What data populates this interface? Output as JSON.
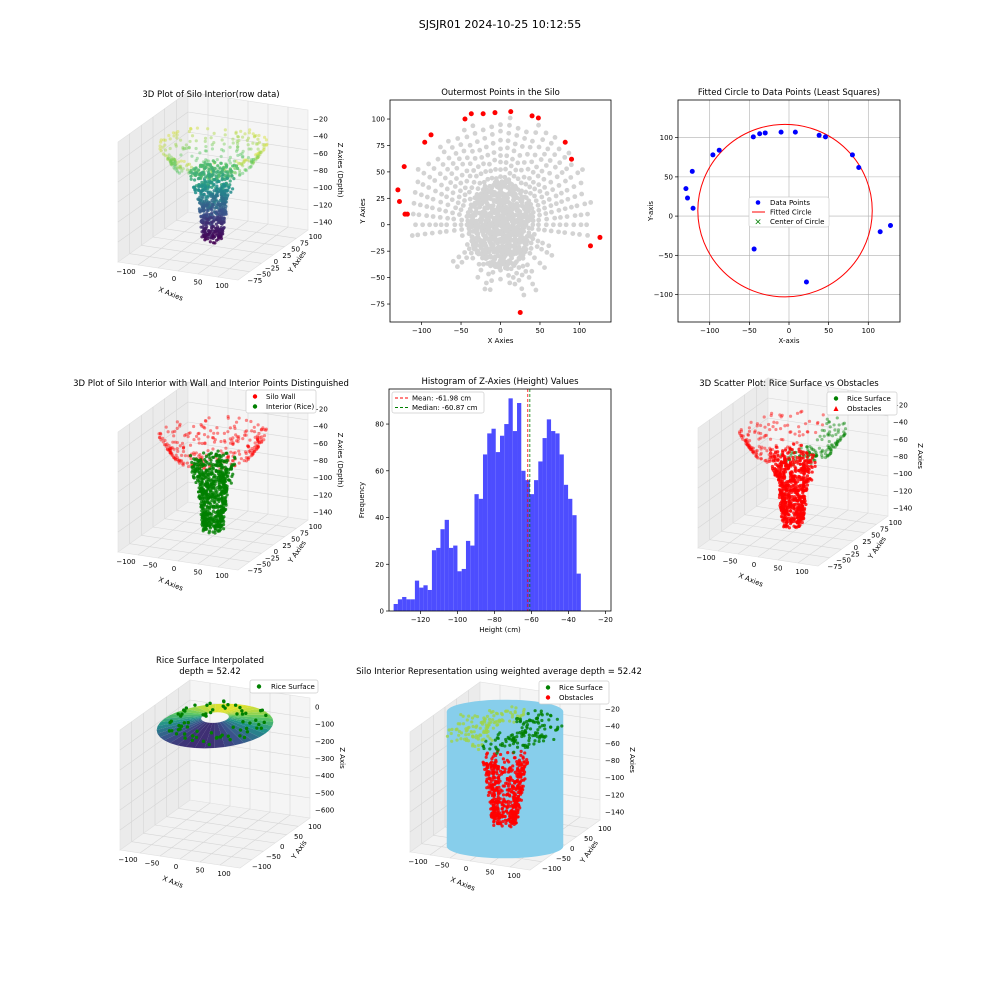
{
  "suptitle": "SJSJR01 2024-10-25 10:12:55",
  "colors": {
    "red": "#ff0000",
    "blue": "#0000ff",
    "green": "#008000",
    "grey": "#d3d3d3",
    "skyblue": "#87ceeb",
    "hist": "#4d4dff",
    "pane": "#f2f2f2",
    "grid": "#d9d9d9"
  },
  "chart_data": [
    {
      "id": "p1",
      "type": "scatter",
      "projection": "3d",
      "title": "3D Plot of Silo Interior(row data)",
      "xlabel": "X Axies",
      "ylabel": "Y Axies",
      "zlabel": "Z Axies (Depth)",
      "xticks": [
        -100,
        -50,
        0,
        50,
        100
      ],
      "yticks": [
        100,
        75,
        50,
        25,
        0,
        -25,
        -50,
        -75
      ],
      "zticks": [
        -20,
        -40,
        -60,
        -80,
        -100,
        -120,
        -140
      ],
      "zlim": [
        -145,
        -15
      ],
      "colormap": "viridis"
    },
    {
      "id": "p2",
      "type": "scatter",
      "title": "Outermost Points in the Silo",
      "xlabel": "X Axies",
      "ylabel": "Y Axies",
      "xlim": [
        -140,
        140
      ],
      "ylim": [
        -92,
        118
      ],
      "xticks": [
        -100,
        -50,
        0,
        50,
        100
      ],
      "yticks": [
        -75,
        -50,
        -25,
        0,
        25,
        50,
        75,
        100
      ],
      "series": [
        {
          "role": "outermost",
          "x": [
            -130,
            -128,
            -121,
            -122,
            -118,
            -96,
            -88,
            -45,
            -37,
            -22,
            -7,
            13,
            40,
            48,
            82,
            90,
            126,
            114,
            25
          ],
          "y": [
            33,
            22,
            10,
            55,
            10,
            78,
            85,
            100,
            105,
            105,
            106,
            107,
            103,
            101,
            78,
            62,
            -12,
            -20,
            -83
          ]
        }
      ]
    },
    {
      "id": "p3",
      "type": "scatter",
      "title": "Fitted Circle to Data Points (Least Squares)",
      "xlabel": "X-axis",
      "ylabel": "Y-axis",
      "xlim": [
        -140,
        140
      ],
      "ylim": [
        -135,
        148
      ],
      "xticks": [
        -100,
        -50,
        0,
        50,
        100
      ],
      "yticks": [
        -100,
        -50,
        0,
        50,
        100
      ],
      "grid": true,
      "legend": {
        "position": "center",
        "entries": [
          "Data Points",
          "Fitted Circle",
          "Center of Circle"
        ]
      },
      "points": {
        "x": [
          -130,
          -128,
          -121,
          -122,
          -96,
          -88,
          -45,
          -37,
          -30,
          -10,
          8,
          38,
          46,
          80,
          88,
          128,
          115,
          22,
          -44
        ],
        "y": [
          35,
          23,
          10,
          57,
          78,
          84,
          101,
          105,
          106,
          107,
          107,
          103,
          101,
          78,
          62,
          -12,
          -20,
          -84,
          -42
        ]
      },
      "circle": {
        "cx": -5,
        "cy": 7,
        "r": 110
      }
    },
    {
      "id": "p4",
      "type": "scatter",
      "projection": "3d",
      "title": "3D Plot of Silo Interior with Wall and Interior Points Distinguished",
      "xlabel": "X Axies",
      "ylabel": "Y Axies",
      "zlabel": "Z Axies (Depth)",
      "xticks": [
        -100,
        -50,
        0,
        50,
        100
      ],
      "yticks": [
        100,
        75,
        50,
        25,
        0,
        -25,
        -50,
        -75
      ],
      "zticks": [
        -20,
        -40,
        -60,
        -80,
        -100,
        -120,
        -140
      ],
      "legend": {
        "position": "top-right",
        "entries": [
          "Silo Wall",
          "Interior (Rice)"
        ]
      }
    },
    {
      "id": "p5",
      "type": "bar",
      "title": "Histogram of Z-Axies (Height) Values",
      "xlabel": "Height (cm)",
      "ylabel": "Frequency",
      "xlim": [
        -137,
        -17
      ],
      "ylim": [
        0,
        95
      ],
      "xticks": [
        -120,
        -100,
        -80,
        -60,
        -40,
        -20
      ],
      "yticks": [
        0,
        20,
        40,
        60,
        80
      ],
      "bin_start": -134.5,
      "bin_width": 2.3,
      "values": [
        3,
        5,
        6,
        5,
        5,
        13,
        10,
        11,
        9,
        26,
        27,
        35,
        39,
        27,
        28,
        17,
        18,
        30,
        28,
        50,
        48,
        67,
        76,
        78,
        68,
        75,
        80,
        91,
        77,
        89,
        60,
        56,
        50,
        56,
        64,
        74,
        82,
        77,
        76,
        67,
        54,
        48,
        41,
        16
      ],
      "mean": -61.98,
      "median": -60.87,
      "legend": {
        "position": "top-left",
        "entries": [
          "Mean: -61.98 cm",
          "Median: -60.87 cm"
        ]
      }
    },
    {
      "id": "p6",
      "type": "scatter",
      "projection": "3d",
      "title": "3D Scatter Plot: Rice Surface vs Obstacles",
      "xlabel": "X Axies",
      "ylabel": "Y Axies",
      "zlabel": "Z Axies",
      "xticks": [
        -100,
        -50,
        0,
        50,
        100
      ],
      "yticks": [
        100,
        75,
        50,
        25,
        0,
        -25,
        -50,
        -75
      ],
      "zticks": [
        -20,
        -40,
        -60,
        -80,
        -100,
        -120,
        -140
      ],
      "legend": {
        "position": "top-right",
        "entries": [
          "Rice Surface",
          "Obstacles"
        ]
      }
    },
    {
      "id": "p7",
      "type": "scatter",
      "projection": "3d",
      "title_lines": [
        "Rice Surface Interpolated",
        "depth = 52.42"
      ],
      "xlabel": "X Axis",
      "ylabel": "Y Axis",
      "zlabel": "Z Axis",
      "xticks": [
        -100,
        -50,
        0,
        50,
        100
      ],
      "yticks": [
        100,
        50,
        0,
        -50,
        -100
      ],
      "zticks": [
        0,
        -100,
        -200,
        -300,
        -400,
        -500,
        -600
      ],
      "legend": {
        "position": "top-right",
        "entries": [
          "Rice Surface"
        ]
      }
    },
    {
      "id": "p8",
      "type": "scatter",
      "projection": "3d",
      "title": "Silo Interior Representation using weighted average depth = 52.42",
      "xlabel": "X Axies",
      "ylabel": "Y Axies",
      "zlabel": "Z Axies",
      "xticks": [
        -100,
        -50,
        0,
        50,
        100
      ],
      "yticks": [
        100,
        50,
        0,
        -50,
        -100
      ],
      "zticks": [
        -20,
        -40,
        -60,
        -80,
        -100,
        -120,
        -140
      ],
      "legend": {
        "position": "top-center",
        "entries": [
          "Rice Surface",
          "Obstacles"
        ]
      }
    }
  ]
}
